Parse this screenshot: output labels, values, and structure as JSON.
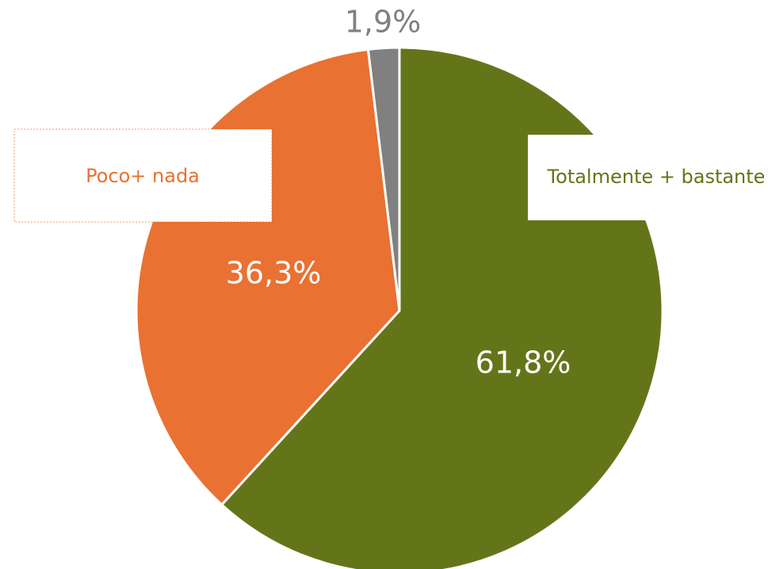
{
  "chart_data": {
    "type": "pie",
    "categories": [
      "Totalmente + bastante",
      "Poco+ nada",
      null
    ],
    "values": [
      61.8,
      36.3,
      1.9
    ],
    "value_labels": [
      "61,8%",
      "36,3%",
      "1,9%"
    ],
    "colors": [
      "#647519",
      "#e97132",
      "#808080"
    ]
  }
}
